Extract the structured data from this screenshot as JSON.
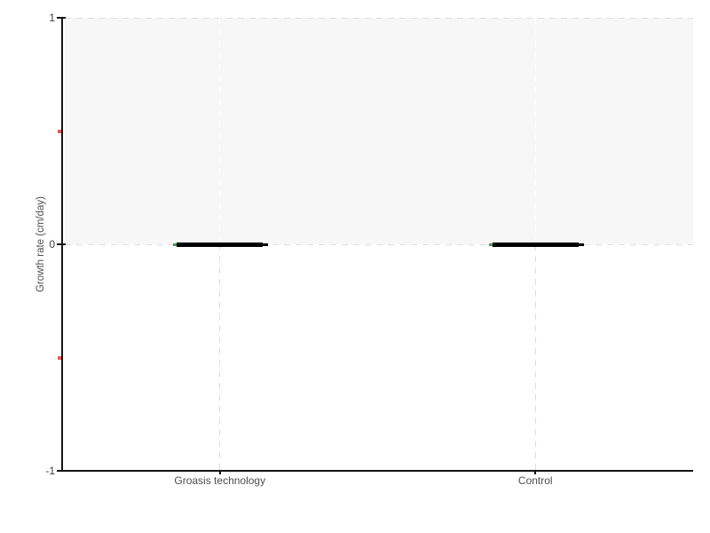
{
  "chart_data": {
    "type": "boxplot",
    "title": "",
    "xlabel": "",
    "ylabel": "Growth rate (cm/day)",
    "categories": [
      "Groasis technology",
      "Control"
    ],
    "values": [
      0,
      0
    ],
    "series": [
      {
        "name": "Growth rate (cm/day)",
        "values": [
          0,
          0
        ],
        "note": "both distributions fully collapsed at 0 cm/day (min=median=max=0), drawn as thick horizontal bar at y=0"
      }
    ],
    "ylim": [
      -1,
      1
    ],
    "yticks": [
      1,
      0,
      -1
    ],
    "yticks_minor": [
      0.5,
      -0.5
    ],
    "shaded_band_y": [
      0,
      1
    ],
    "gridlines": {
      "horizontal_dashed_at": [
        1,
        0
      ],
      "vertical_dashed_at_categories": true
    },
    "legend": "none"
  },
  "colors": {
    "background": "#ffffff",
    "band": "#f7f7f7",
    "grid_dash": "#dedede",
    "grid_dash_on_band": "#ffffff",
    "axis": "#141414",
    "tick_label": "#3d3d3d",
    "category_label": "#4f4f4f",
    "axis_title": "#4f4f4f",
    "bar": "#000000",
    "open_tick_green": "#4a9b4a",
    "minor_tick_red": "#e85c50"
  }
}
